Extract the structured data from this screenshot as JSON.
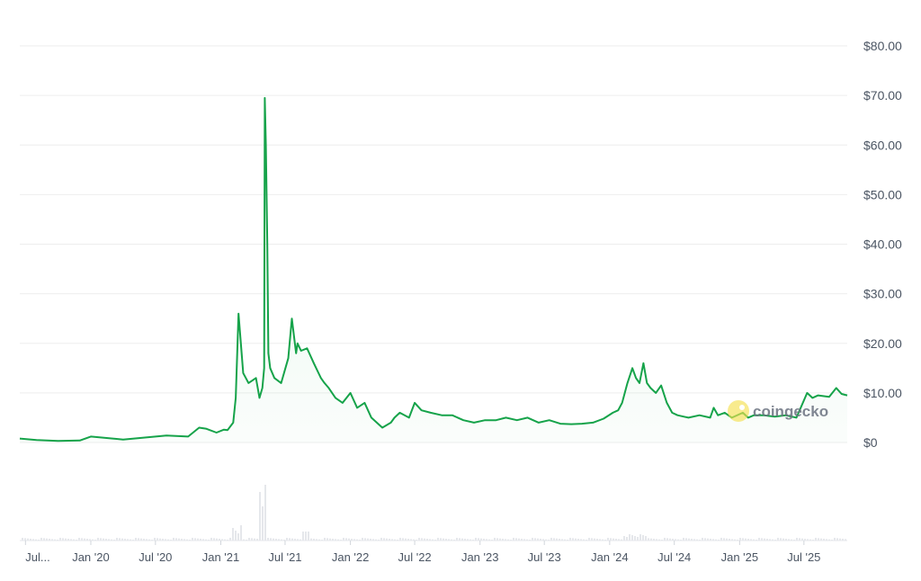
{
  "chart_data": {
    "type": "line",
    "title": "",
    "xlabel": "",
    "ylabel": "",
    "ylim": [
      0,
      80
    ],
    "grid": true,
    "y_tick_labels": [
      "$0",
      "$10.00",
      "$20.00",
      "$30.00",
      "$40.00",
      "$50.00",
      "$60.00",
      "$70.00",
      "$80.00"
    ],
    "y_tick_values": [
      0,
      10,
      20,
      30,
      40,
      50,
      60,
      70,
      80
    ],
    "x_tick_labels": [
      "Jul...",
      "Jan '20",
      "Jul '20",
      "Jan '21",
      "Jul '21",
      "Jan '22",
      "Jul '22",
      "Jan '23",
      "Jul '23",
      "Jan '24",
      "Jul '24",
      "Jan '25",
      "Jul '25"
    ],
    "x_tick_values": [
      "2019-07",
      "2020-01",
      "2020-07",
      "2021-01",
      "2021-07",
      "2022-01",
      "2022-07",
      "2023-01",
      "2023-07",
      "2024-01",
      "2024-07",
      "2025-01",
      "2025-07"
    ],
    "line_color": "#16a34a",
    "volume_color": "#e5e7eb",
    "series": [
      {
        "x": [
          "2019-06-15",
          "2019-08-01",
          "2019-10-01",
          "2019-12-01",
          "2020-01-01",
          "2020-02-01",
          "2020-04-01",
          "2020-06-01",
          "2020-08-01",
          "2020-10-01",
          "2020-11-01",
          "2020-11-20",
          "2020-12-20",
          "2021-01-10",
          "2021-01-20",
          "2021-02-05",
          "2021-02-12",
          "2021-02-20",
          "2021-03-05",
          "2021-03-20",
          "2021-04-10",
          "2021-04-20",
          "2021-04-28",
          "2021-05-03",
          "2021-05-05",
          "2021-05-08",
          "2021-05-12",
          "2021-05-15",
          "2021-05-20",
          "2021-06-01",
          "2021-06-20",
          "2021-07-10",
          "2021-07-20",
          "2021-08-01",
          "2021-08-05",
          "2021-08-15",
          "2021-09-01",
          "2021-09-20",
          "2021-10-10",
          "2021-10-20",
          "2021-11-01",
          "2021-11-20",
          "2021-12-10",
          "2022-01-01",
          "2022-01-20",
          "2022-02-10",
          "2022-03-01",
          "2022-04-01",
          "2022-04-25",
          "2022-05-05",
          "2022-05-20",
          "2022-06-15",
          "2022-07-01",
          "2022-07-20",
          "2022-08-15",
          "2022-09-15",
          "2022-10-15",
          "2022-11-15",
          "2022-12-15",
          "2023-01-15",
          "2023-02-15",
          "2023-03-15",
          "2023-04-15",
          "2023-05-15",
          "2023-06-15",
          "2023-07-15",
          "2023-08-15",
          "2023-09-15",
          "2023-10-15",
          "2023-11-15",
          "2023-12-15",
          "2024-01-10",
          "2024-01-25",
          "2024-02-05",
          "2024-02-20",
          "2024-03-05",
          "2024-03-15",
          "2024-03-25",
          "2024-04-05",
          "2024-04-15",
          "2024-04-25",
          "2024-05-10",
          "2024-05-25",
          "2024-06-10",
          "2024-06-25",
          "2024-07-10",
          "2024-08-10",
          "2024-09-10",
          "2024-10-10",
          "2024-10-20",
          "2024-11-01",
          "2024-11-20",
          "2024-12-10",
          "2025-01-10",
          "2025-01-25",
          "2025-02-10",
          "2025-03-10",
          "2025-04-10",
          "2025-05-10",
          "2025-06-10",
          "2025-07-10",
          "2025-07-25",
          "2025-08-10",
          "2025-09-10",
          "2025-09-30",
          "2025-10-15",
          "2025-10-31"
        ],
        "values": [
          0.8,
          0.5,
          0.3,
          0.4,
          1.2,
          1.0,
          0.6,
          1.0,
          1.4,
          1.2,
          3.0,
          2.8,
          2.0,
          2.6,
          2.5,
          4.0,
          9.0,
          26.0,
          14.0,
          12.0,
          13.0,
          9.0,
          11.0,
          15.0,
          69.5,
          60.0,
          40.0,
          18.0,
          15.0,
          13.0,
          12.0,
          17.0,
          25.0,
          18.0,
          20.0,
          18.5,
          19.0,
          16.0,
          13.0,
          12.0,
          11.0,
          9.0,
          8.0,
          10.0,
          7.0,
          8.0,
          5.0,
          3.0,
          4.0,
          5.0,
          6.0,
          5.0,
          8.0,
          6.5,
          6.0,
          5.5,
          5.5,
          4.5,
          4.0,
          4.5,
          4.5,
          5.0,
          4.5,
          5.0,
          4.0,
          4.5,
          3.8,
          3.7,
          3.8,
          4.0,
          4.8,
          6.0,
          6.5,
          8.0,
          12.0,
          15.0,
          13.0,
          12.0,
          16.0,
          12.0,
          11.0,
          10.0,
          11.5,
          8.0,
          6.0,
          5.5,
          5.0,
          5.5,
          5.0,
          7.0,
          5.5,
          6.0,
          5.0,
          6.0,
          5.0,
          5.5,
          5.5,
          5.2,
          5.5,
          5.0,
          10.0,
          9.0,
          9.5,
          9.2,
          11.0,
          9.8,
          9.5
        ]
      }
    ]
  },
  "watermark": {
    "text": "coingecko",
    "icon": "gecko-logo-icon"
  }
}
